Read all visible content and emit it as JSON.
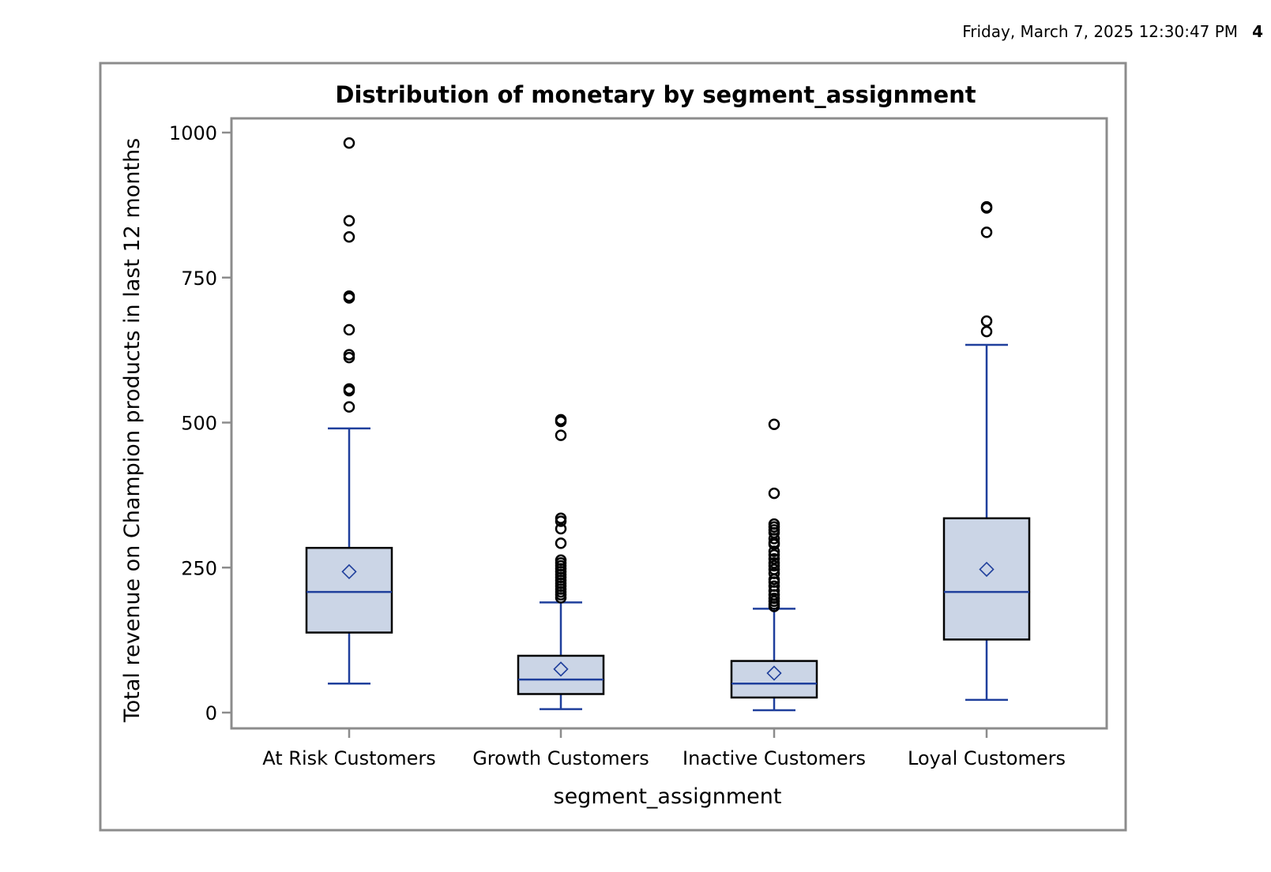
{
  "header": {
    "datetime": "Friday, March  7, 2025 12:30:47 PM",
    "page_number": "4"
  },
  "colors": {
    "box_fill": "#cbd5e6",
    "box_border": "#000000",
    "whisker": "#1f3f9c",
    "median": "#1f3f9c",
    "mean_marker": "#1f3f9c",
    "outlier": "#000000",
    "frame": "#8c8c8c"
  },
  "chart_data": {
    "type": "box",
    "title": "Distribution of monetary by segment_assignment",
    "xlabel": "segment_assignment",
    "ylabel": "Total revenue on Champion products in last 12 months",
    "ylim": [
      -25,
      1025
    ],
    "yticks": [
      0,
      250,
      500,
      750,
      1000
    ],
    "ytick_labels": [
      "0",
      "250",
      "500",
      "750",
      "1000"
    ],
    "grid": false,
    "categories": [
      "At Risk Customers",
      "Growth Customers",
      "Inactive Customers",
      "Loyal Customers"
    ],
    "boxes": [
      {
        "category": "At Risk Customers",
        "whisker_low": 50,
        "q1": 138,
        "median": 208,
        "q3": 284,
        "whisker_high": 490,
        "mean": 243,
        "outliers": [
          527,
          555,
          558,
          612,
          617,
          660,
          715,
          718,
          820,
          848,
          982
        ]
      },
      {
        "category": "Growth Customers",
        "whisker_low": 6,
        "q1": 32,
        "median": 57,
        "q3": 98,
        "whisker_high": 190,
        "mean": 75,
        "outliers": [
          198,
          203,
          208,
          213,
          218,
          223,
          228,
          233,
          238,
          243,
          248,
          253,
          258,
          263,
          292,
          317,
          330,
          335,
          478,
          502,
          505
        ]
      },
      {
        "category": "Inactive Customers",
        "whisker_low": 4,
        "q1": 26,
        "median": 50,
        "q3": 89,
        "whisker_high": 179,
        "mean": 68,
        "outliers": [
          183,
          187,
          192,
          197,
          203,
          210,
          218,
          225,
          230,
          240,
          247,
          253,
          258,
          265,
          272,
          278,
          290,
          293,
          300,
          310,
          315,
          320,
          325,
          378,
          497
        ]
      },
      {
        "category": "Loyal Customers",
        "whisker_low": 22,
        "q1": 126,
        "median": 208,
        "q3": 335,
        "whisker_high": 634,
        "mean": 247,
        "outliers": [
          657,
          675,
          828,
          870,
          872
        ]
      }
    ]
  }
}
